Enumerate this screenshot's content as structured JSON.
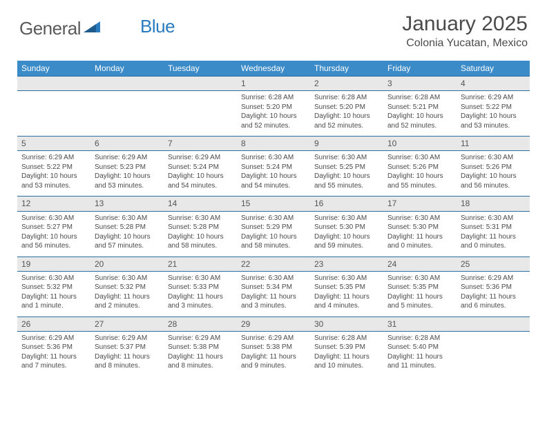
{
  "logo": {
    "text1": "General",
    "text2": "Blue"
  },
  "title": "January 2025",
  "location": "Colonia Yucatan, Mexico",
  "colors": {
    "header_bg": "#3b8bc8",
    "header_text": "#ffffff",
    "daynum_bg": "#e8e8e8",
    "border": "#2a6da0",
    "text": "#4a4a4a",
    "logo_gray": "#5a5a5a",
    "logo_blue": "#2a7bbf"
  },
  "day_headers": [
    "Sunday",
    "Monday",
    "Tuesday",
    "Wednesday",
    "Thursday",
    "Friday",
    "Saturday"
  ],
  "weeks": [
    [
      null,
      null,
      null,
      {
        "n": "1",
        "sr": "6:28 AM",
        "ss": "5:20 PM",
        "dl": "10 hours and 52 minutes."
      },
      {
        "n": "2",
        "sr": "6:28 AM",
        "ss": "5:20 PM",
        "dl": "10 hours and 52 minutes."
      },
      {
        "n": "3",
        "sr": "6:28 AM",
        "ss": "5:21 PM",
        "dl": "10 hours and 52 minutes."
      },
      {
        "n": "4",
        "sr": "6:29 AM",
        "ss": "5:22 PM",
        "dl": "10 hours and 53 minutes."
      }
    ],
    [
      {
        "n": "5",
        "sr": "6:29 AM",
        "ss": "5:22 PM",
        "dl": "10 hours and 53 minutes."
      },
      {
        "n": "6",
        "sr": "6:29 AM",
        "ss": "5:23 PM",
        "dl": "10 hours and 53 minutes."
      },
      {
        "n": "7",
        "sr": "6:29 AM",
        "ss": "5:24 PM",
        "dl": "10 hours and 54 minutes."
      },
      {
        "n": "8",
        "sr": "6:30 AM",
        "ss": "5:24 PM",
        "dl": "10 hours and 54 minutes."
      },
      {
        "n": "9",
        "sr": "6:30 AM",
        "ss": "5:25 PM",
        "dl": "10 hours and 55 minutes."
      },
      {
        "n": "10",
        "sr": "6:30 AM",
        "ss": "5:26 PM",
        "dl": "10 hours and 55 minutes."
      },
      {
        "n": "11",
        "sr": "6:30 AM",
        "ss": "5:26 PM",
        "dl": "10 hours and 56 minutes."
      }
    ],
    [
      {
        "n": "12",
        "sr": "6:30 AM",
        "ss": "5:27 PM",
        "dl": "10 hours and 56 minutes."
      },
      {
        "n": "13",
        "sr": "6:30 AM",
        "ss": "5:28 PM",
        "dl": "10 hours and 57 minutes."
      },
      {
        "n": "14",
        "sr": "6:30 AM",
        "ss": "5:28 PM",
        "dl": "10 hours and 58 minutes."
      },
      {
        "n": "15",
        "sr": "6:30 AM",
        "ss": "5:29 PM",
        "dl": "10 hours and 58 minutes."
      },
      {
        "n": "16",
        "sr": "6:30 AM",
        "ss": "5:30 PM",
        "dl": "10 hours and 59 minutes."
      },
      {
        "n": "17",
        "sr": "6:30 AM",
        "ss": "5:30 PM",
        "dl": "11 hours and 0 minutes."
      },
      {
        "n": "18",
        "sr": "6:30 AM",
        "ss": "5:31 PM",
        "dl": "11 hours and 0 minutes."
      }
    ],
    [
      {
        "n": "19",
        "sr": "6:30 AM",
        "ss": "5:32 PM",
        "dl": "11 hours and 1 minute."
      },
      {
        "n": "20",
        "sr": "6:30 AM",
        "ss": "5:32 PM",
        "dl": "11 hours and 2 minutes."
      },
      {
        "n": "21",
        "sr": "6:30 AM",
        "ss": "5:33 PM",
        "dl": "11 hours and 3 minutes."
      },
      {
        "n": "22",
        "sr": "6:30 AM",
        "ss": "5:34 PM",
        "dl": "11 hours and 3 minutes."
      },
      {
        "n": "23",
        "sr": "6:30 AM",
        "ss": "5:35 PM",
        "dl": "11 hours and 4 minutes."
      },
      {
        "n": "24",
        "sr": "6:30 AM",
        "ss": "5:35 PM",
        "dl": "11 hours and 5 minutes."
      },
      {
        "n": "25",
        "sr": "6:29 AM",
        "ss": "5:36 PM",
        "dl": "11 hours and 6 minutes."
      }
    ],
    [
      {
        "n": "26",
        "sr": "6:29 AM",
        "ss": "5:36 PM",
        "dl": "11 hours and 7 minutes."
      },
      {
        "n": "27",
        "sr": "6:29 AM",
        "ss": "5:37 PM",
        "dl": "11 hours and 8 minutes."
      },
      {
        "n": "28",
        "sr": "6:29 AM",
        "ss": "5:38 PM",
        "dl": "11 hours and 8 minutes."
      },
      {
        "n": "29",
        "sr": "6:29 AM",
        "ss": "5:38 PM",
        "dl": "11 hours and 9 minutes."
      },
      {
        "n": "30",
        "sr": "6:28 AM",
        "ss": "5:39 PM",
        "dl": "11 hours and 10 minutes."
      },
      {
        "n": "31",
        "sr": "6:28 AM",
        "ss": "5:40 PM",
        "dl": "11 hours and 11 minutes."
      },
      null
    ]
  ],
  "labels": {
    "sunrise": "Sunrise:",
    "sunset": "Sunset:",
    "daylight": "Daylight:"
  }
}
